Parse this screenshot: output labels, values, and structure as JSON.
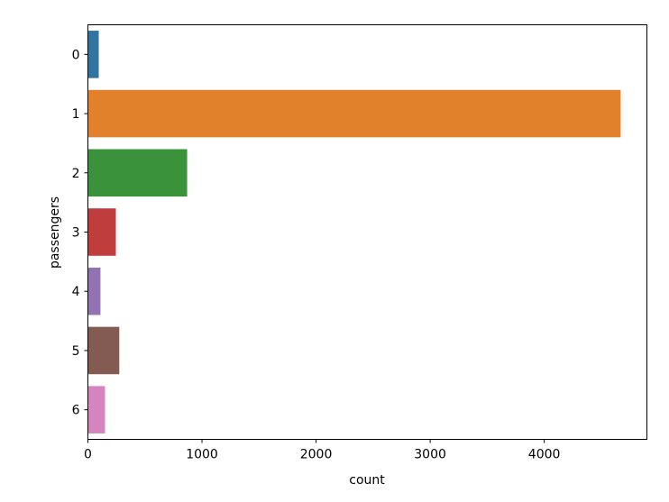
{
  "chart_data": {
    "type": "bar",
    "orientation": "horizontal",
    "categories": [
      "0",
      "1",
      "2",
      "3",
      "4",
      "5",
      "6"
    ],
    "values": [
      95,
      4670,
      870,
      245,
      110,
      275,
      150
    ],
    "colors": [
      "#1f77b4",
      "#ff7f0e",
      "#2ca02c",
      "#d62728",
      "#9467bd",
      "#8c564b",
      "#e377c2"
    ],
    "bar_saturation": 0.75,
    "xlabel": "count",
    "ylabel": "passengers",
    "xlim": [
      0,
      4900
    ],
    "xticks": [
      0,
      1000,
      2000,
      3000,
      4000
    ],
    "grid": false,
    "legend": "none"
  }
}
